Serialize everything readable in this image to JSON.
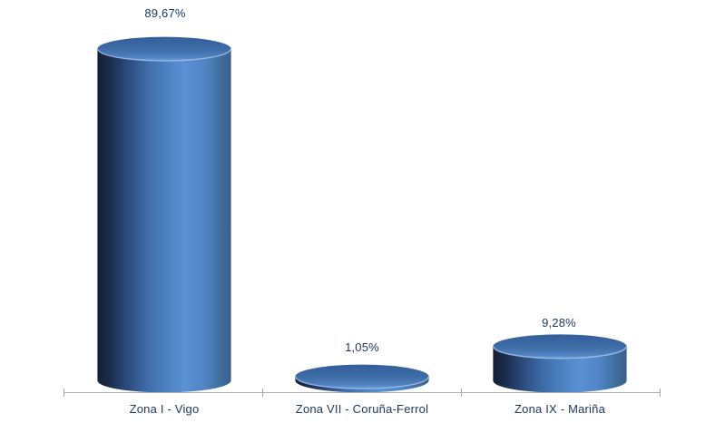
{
  "chart_data": {
    "type": "bar",
    "subtype": "3d-cylinder",
    "categories": [
      "Zona I - Vigo",
      "Zona VII - Coruña-Ferrol",
      "Zona IX - Mariña"
    ],
    "values": [
      89.67,
      1.05,
      9.28
    ],
    "data_labels": [
      "89,67%",
      "1,05%",
      "9,28%"
    ],
    "title": "",
    "xlabel": "",
    "ylabel": "",
    "ylim": [
      0,
      100
    ],
    "grid": false,
    "legend": false,
    "bar_color": "#4F81BD",
    "bar_dark_edge": "#151F36",
    "bar_highlight": "#5A91D4",
    "label_color": "#1F3864",
    "axis_color": "#B0B0B0",
    "background": "#FFFFFF"
  }
}
